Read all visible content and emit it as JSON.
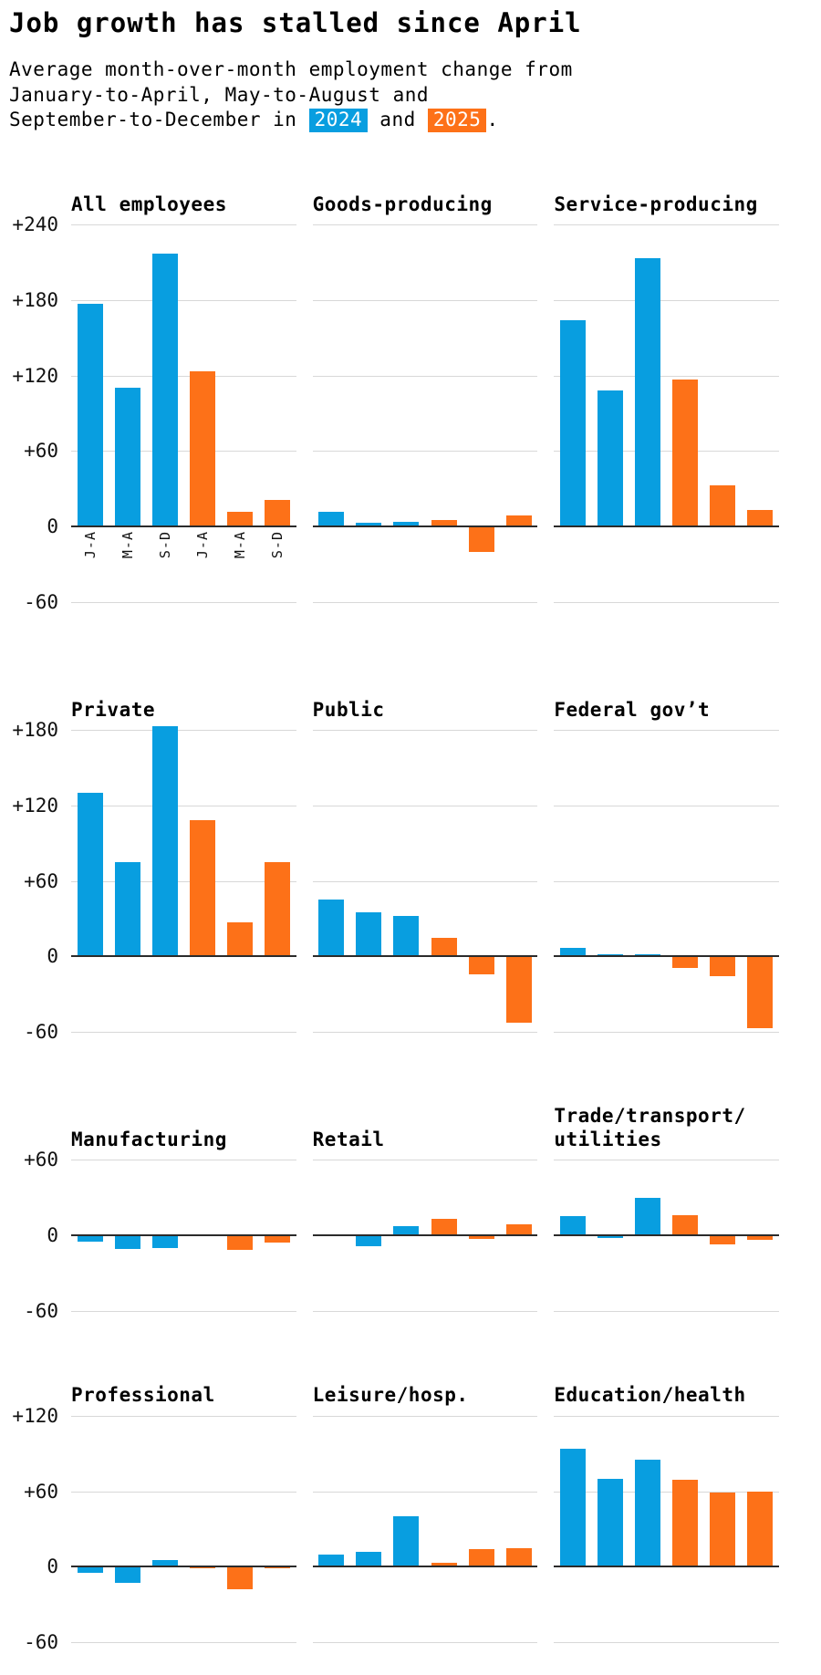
{
  "header": {
    "title": "Job growth has stalled since April",
    "subtitle": {
      "line1": "Average month-over-month employment change from",
      "line2": "January-to-April, May-to-August and",
      "line3_prefix": "September-to-December in ",
      "year1": "2024",
      "mid": " and ",
      "year2": "2025",
      "suffix": "."
    }
  },
  "colors": {
    "bar_2024": "#089ee0",
    "bar_2025": "#fd7118",
    "gridline": "#d8d8d8",
    "zero_line": "#2b2b2b",
    "chip_text": "#ffffff"
  },
  "chart_data": {
    "type": "bar",
    "categories": [
      "J-A",
      "M-A",
      "S-D",
      "J-A",
      "M-A",
      "S-D"
    ],
    "series_note": "first 3 bars = 2024 (blue), last 3 bars = 2025 (orange)",
    "grid": "on",
    "rows": [
      {
        "ylim": [
          -60,
          240
        ],
        "yticks": [
          240,
          180,
          120,
          60,
          0,
          -60
        ],
        "charts": [
          {
            "title": "All employees",
            "values": [
              177,
              110,
              217,
              123,
              12,
              21
            ]
          },
          {
            "title": "Goods-producing",
            "values": [
              12,
              3,
              4,
              5,
              -20,
              9
            ]
          },
          {
            "title": "Service-producing",
            "values": [
              164,
              108,
              213,
              117,
              33,
              13
            ]
          }
        ]
      },
      {
        "ylim": [
          -60,
          180
        ],
        "yticks": [
          180,
          120,
          60,
          0,
          -60
        ],
        "charts": [
          {
            "title": "Private",
            "values": [
              130,
              75,
              183,
              108,
              27,
              75
            ]
          },
          {
            "title": "Public",
            "values": [
              45,
              35,
              32,
              15,
              -14,
              -53
            ]
          },
          {
            "title": "Federal gov’t",
            "values": [
              7,
              2,
              2,
              -9,
              -16,
              -57
            ]
          }
        ]
      },
      {
        "ylim": [
          -60,
          60
        ],
        "yticks": [
          60,
          0,
          -60
        ],
        "charts": [
          {
            "title": "Manufacturing",
            "values": [
              -5,
              -11,
              -10,
              1,
              -12,
              -6
            ]
          },
          {
            "title": "Retail",
            "values": [
              1,
              -9,
              7,
              13,
              -3,
              9
            ]
          },
          {
            "title": "Trade/transport/\nutilities",
            "values": [
              15,
              -2,
              30,
              16,
              -7,
              -4
            ]
          }
        ]
      },
      {
        "ylim": [
          -60,
          120
        ],
        "yticks": [
          120,
          60,
          0,
          -60
        ],
        "charts": [
          {
            "title": "Professional",
            "values": [
              -5,
              -13,
              5,
              -1,
              -18,
              -1
            ]
          },
          {
            "title": "Leisure/hosp.",
            "values": [
              10,
              12,
              40,
              3,
              14,
              15
            ]
          },
          {
            "title": "Education/health",
            "values": [
              94,
              70,
              85,
              69,
              59,
              60
            ]
          }
        ]
      }
    ]
  }
}
